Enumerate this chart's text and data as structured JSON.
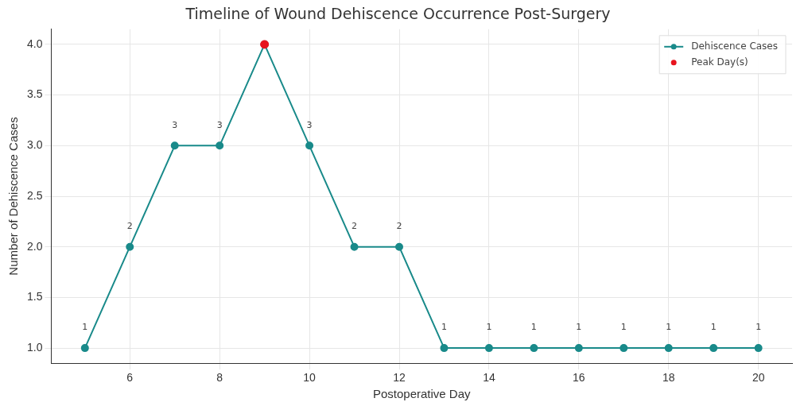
{
  "chart_data": {
    "type": "line",
    "title": "Timeline of Wound Dehiscence Occurrence Post-Surgery",
    "xlabel": "Postoperative Day",
    "ylabel": "Number of Dehiscence Cases",
    "x": [
      5,
      6,
      7,
      8,
      9,
      10,
      11,
      12,
      13,
      14,
      15,
      16,
      17,
      18,
      19,
      20
    ],
    "series": [
      {
        "name": "Dehiscence Cases",
        "color": "#198a8a",
        "values": [
          1,
          2,
          3,
          3,
          4,
          3,
          2,
          2,
          1,
          1,
          1,
          1,
          1,
          1,
          1,
          1
        ],
        "value_labels": [
          "1",
          "2",
          "3",
          "3",
          null,
          "3",
          "2",
          "2",
          "1",
          "1",
          "1",
          "1",
          "1",
          "1",
          "1",
          "1"
        ]
      },
      {
        "name": "Peak Day(s)",
        "type": "scatter",
        "color": "#e8141e",
        "x": [
          9
        ],
        "values": [
          4
        ]
      }
    ],
    "xlim": [
      4.25,
      20.75
    ],
    "xticks": [
      6,
      8,
      10,
      12,
      14,
      16,
      18,
      20
    ],
    "ylim": [
      0.85,
      4.15
    ],
    "yticks": [
      {
        "value": 1,
        "label": "1.0"
      },
      {
        "value": 1.5,
        "label": "1.5"
      },
      {
        "value": 2,
        "label": "2.0"
      },
      {
        "value": 2.5,
        "label": "2.5"
      },
      {
        "value": 3,
        "label": "3.0"
      },
      {
        "value": 3.5,
        "label": "3.5"
      },
      {
        "value": 4,
        "label": "4.0"
      }
    ],
    "grid": true,
    "legend": "top right",
    "marker": "circle"
  }
}
